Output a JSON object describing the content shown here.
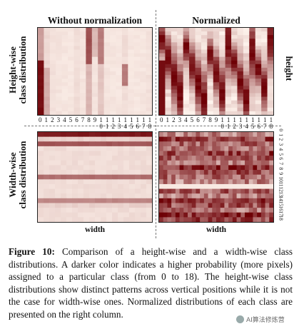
{
  "figure": {
    "col_titles": [
      "Without normalization",
      "Normalized"
    ],
    "row_labels": {
      "top": [
        "Height-wise",
        "class distribution"
      ],
      "bottom": [
        "Width-wise",
        "class distribution"
      ]
    },
    "side_label_top": "height",
    "axis_label_bottom_left": "width",
    "axis_label_bottom_right": "width",
    "class_ticks": [
      "0",
      "1",
      "2",
      "3",
      "4",
      "5",
      "6",
      "7",
      "8",
      "9",
      "1\n0",
      "1\n1",
      "1\n2",
      "1\n3",
      "1\n4",
      "1\n5",
      "1\n6",
      "1\n7",
      "1\n8"
    ],
    "class_ticks_right": [
      "0",
      "1",
      "2",
      "3",
      "4",
      "5",
      "6",
      "7",
      "8",
      "9",
      "10",
      "11",
      "12",
      "13",
      "14",
      "15",
      "16",
      "17",
      "18"
    ]
  },
  "chart_data": [
    {
      "type": "heatmap",
      "title": "Without normalization",
      "rows_axis": "height",
      "cols_axis": "class (0-18)",
      "col_intensity": [
        0.95,
        0.25,
        0.15,
        0.12,
        0.1,
        0.1,
        0.2,
        0.1,
        0.75,
        0.35,
        0.55,
        0.12,
        0.1,
        0.1,
        0.5,
        0.1,
        0.1,
        0.1,
        0.15
      ],
      "note_shown": "darker = higher probability"
    },
    {
      "type": "heatmap",
      "title": "Normalized",
      "rows_axis": "height",
      "cols_axis": "class (0-18)"
    },
    {
      "type": "heatmap",
      "title": "Width-wise, without normalization",
      "rows_axis": "class (0-18)",
      "cols_axis": "width",
      "row_intensity": [
        0.9,
        0.15,
        0.65,
        0.1,
        0.1,
        0.1,
        0.1,
        0.1,
        0.1,
        0.55,
        0.1,
        0.1,
        0.1,
        0.1,
        0.45,
        0.15,
        0.1,
        0.1,
        0.1
      ]
    },
    {
      "type": "heatmap",
      "title": "Width-wise, normalized",
      "rows_axis": "class (0-18)",
      "cols_axis": "width"
    }
  ],
  "caption": {
    "label": "Figure 10:",
    "text": " Comparison of a height-wise and a width-wise class distributions. A darker color indicates a higher probability (more pixels) assigned to a particular class (from 0 to 18). The height-wise class distributions show distinct patterns across vertical positions while it is not the case for width-wise ones. Normalized distributions of each class are presented on the right column."
  },
  "watermark": "AI算法修炼营"
}
